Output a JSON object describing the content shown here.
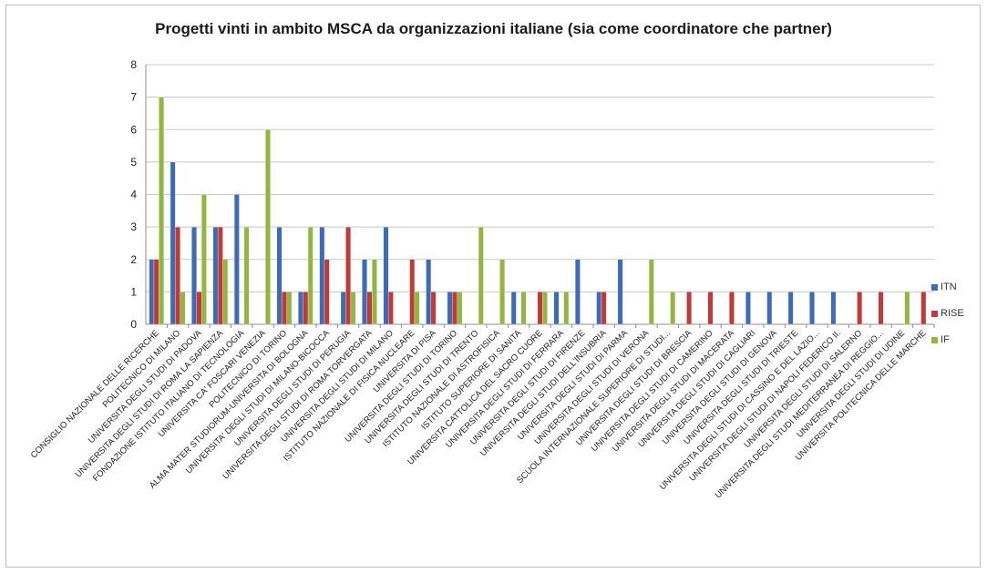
{
  "chart_data": {
    "type": "bar",
    "title": "Progetti vinti in ambito MSCA da organizzazioni italiane (sia come coordinatore che partner)",
    "xlabel": "",
    "ylabel": "",
    "ylim": [
      0,
      8
    ],
    "yticks": [
      0,
      1,
      2,
      3,
      4,
      5,
      6,
      7,
      8
    ],
    "grid": true,
    "legend_position": "right",
    "categories": [
      "CONSIGLIO NAZIONALE DELLE RICERCHE",
      "POLITECNICO DI MILANO",
      "UNIVERSITA DEGLI STUDI DI PADOVA",
      "UNIVERSITA DEGLI STUDI DI ROMA LA SAPIENZA",
      "FONDAZIONE ISTITUTO ITALIANO DI TECNOLOGIA",
      "UNIVERSITA CA' FOSCARI VENEZIA",
      "POLITECNICO DI TORINO",
      "ALMA MATER STUDIORUM-UNIVERSITA DI BOLOGNA",
      "UNIVERSITA' DEGLI STUDI DI MILANO-BICOCCA",
      "UNIVERSITA DEGLI STUDI DI PERUGIA",
      "UNIVERSITA DEGLI STUDI DI ROMA TORVERGATA",
      "UNIVERSITA DEGLI STUDI DI MILANO",
      "ISTITUTO NAZIONALE DI FISICA NUCLEARE",
      "UNIVERSITA DI PISA",
      "UNIVERSITA DEGLI STUDI DI TORINO",
      "UNIVERSITA DEGLI STUDI DI TRENTO",
      "ISTITUTO NAZIONALE DI ASTROFISICA",
      "ISTITUTO SUPERIORE DI SANITA",
      "UNIVERSITA CATTOLICA DEL SACRO CUORE",
      "UNIVERSITA DEGLI STUDI DI FERRARA",
      "UNIVERSITA DEGLI STUDI DI FIRENZE",
      "UNIVERSITA DEGLI STUDI DELL'INSUBRIA",
      "UNIVERSITA DEGLI STUDI DI PARMA",
      "UNIVERSITA DEGLI STUDI DI VERONA",
      "SCUOLA INTERNAZIONALE SUPERIORE DI STUDI...",
      "UNIVERSITA DEGLI STUDI DI BRESCIA",
      "UNIVERSITA DEGLI STUDI DI CAMERINO",
      "UNIVERSITA DEGLI STUDI DI MACERATA",
      "UNIVERSITA DEGLI STUDI DI CAGLIARI",
      "UNIVERSITA DEGLI STUDI DI GENOVA",
      "UNIVERSITA DEGLI STUDI DI TRIESTE",
      "UNIVERSITA DEGLI STUDI DI CASSINO E DEL LAZIO...",
      "UNIVERSITA DEGLI STUDI DI NAPOLI FEDERICO II.",
      "UNIVERSITA DEGLI STUDI DI SALERNO",
      "UNIVERSITA DEGLI STUDI MEDITERRANEA DI REGGIO...",
      "UNIVERSITA DEGLI STUDI DI UDINE",
      "UNIVERSITA POLITECNICA DELLE MARCHE"
    ],
    "series": [
      {
        "name": "ITN",
        "color": "#3d6cb5",
        "values": [
          2,
          5,
          3,
          3,
          4,
          0,
          3,
          1,
          3,
          1,
          2,
          3,
          0,
          2,
          1,
          0,
          0,
          1,
          0,
          1,
          2,
          1,
          2,
          0,
          0,
          0,
          0,
          0,
          1,
          1,
          1,
          1,
          1,
          0,
          0,
          0,
          0
        ]
      },
      {
        "name": "RISE",
        "color": "#bf3b3b",
        "values": [
          2,
          3,
          1,
          3,
          0,
          0,
          1,
          1,
          2,
          3,
          1,
          1,
          2,
          1,
          1,
          0,
          0,
          0,
          1,
          0,
          0,
          1,
          0,
          0,
          0,
          1,
          1,
          1,
          0,
          0,
          0,
          0,
          0,
          1,
          1,
          0,
          1
        ]
      },
      {
        "name": "IF",
        "color": "#94b443",
        "values": [
          7,
          1,
          4,
          2,
          3,
          6,
          1,
          3,
          0,
          1,
          2,
          0,
          1,
          0,
          1,
          3,
          2,
          1,
          1,
          1,
          0,
          0,
          0,
          2,
          1,
          0,
          0,
          0,
          0,
          0,
          0,
          0,
          0,
          0,
          0,
          1,
          0
        ]
      }
    ]
  }
}
